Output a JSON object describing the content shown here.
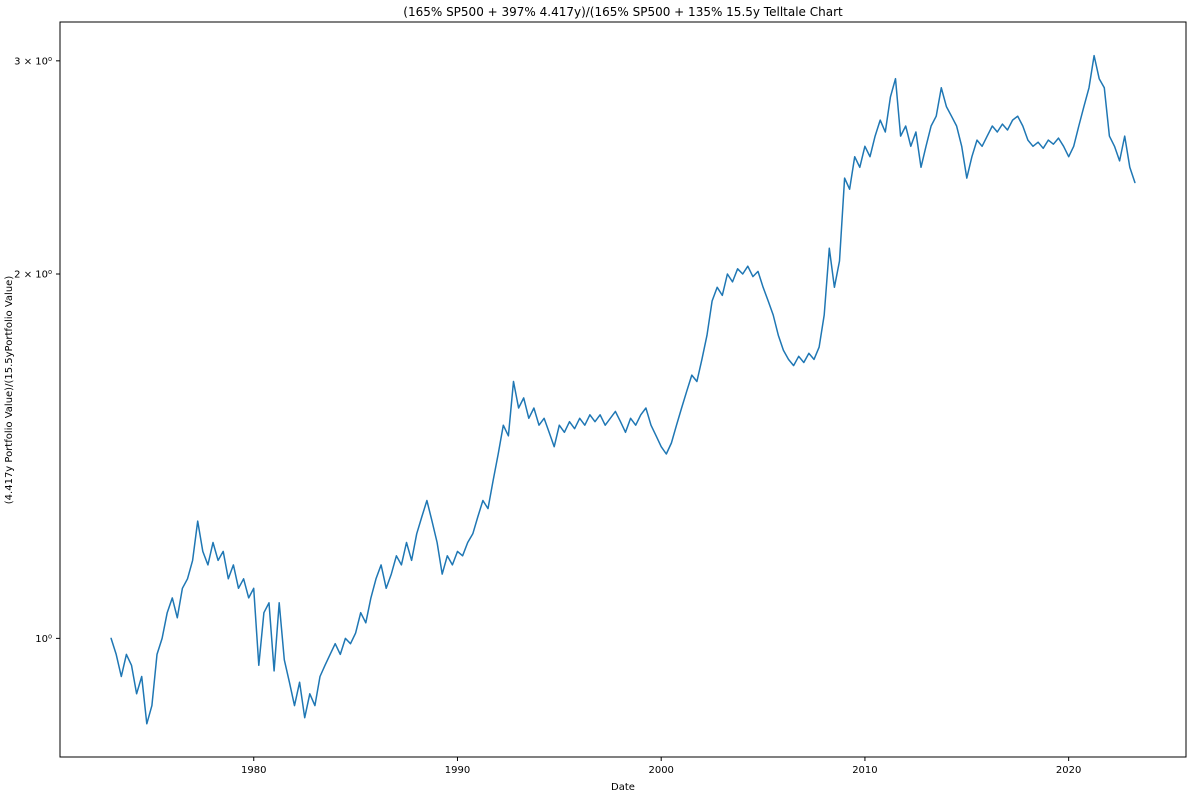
{
  "chart_data": {
    "type": "line",
    "title": "(165% SP500 + 397% 4.417y)/(165% SP500 + 135% 15.5y Telltale Chart",
    "xlabel": "Date",
    "ylabel": "(4.417y Portfolio Value)/(15.5yPortfolio Value)",
    "yscale": "log",
    "xlim": [
      1970.49,
      2025.76
    ],
    "ylim": [
      0.798,
      3.23
    ],
    "xtick_values": [
      1980,
      1990,
      2000,
      2010,
      2020
    ],
    "xtick_labels": [
      "1980",
      "1990",
      "2000",
      "2010",
      "2020"
    ],
    "ytick_values": [
      1,
      2,
      3
    ],
    "ytick_labels": [
      "10⁰",
      "2 × 10⁰",
      "3 × 10⁰"
    ],
    "line_color": "#1f77b4",
    "axis_color": "#000000",
    "background_color": "#ffffff",
    "legend": "none",
    "grid": false,
    "points": [
      [
        1973.0,
        1.0
      ],
      [
        1973.25,
        0.97
      ],
      [
        1973.5,
        0.93
      ],
      [
        1973.75,
        0.97
      ],
      [
        1974.0,
        0.95
      ],
      [
        1974.25,
        0.9
      ],
      [
        1974.5,
        0.93
      ],
      [
        1974.75,
        0.85
      ],
      [
        1975.0,
        0.88
      ],
      [
        1975.25,
        0.97
      ],
      [
        1975.5,
        1.0
      ],
      [
        1975.75,
        1.05
      ],
      [
        1976.0,
        1.08
      ],
      [
        1976.25,
        1.04
      ],
      [
        1976.5,
        1.1
      ],
      [
        1976.75,
        1.12
      ],
      [
        1977.0,
        1.16
      ],
      [
        1977.25,
        1.25
      ],
      [
        1977.5,
        1.18
      ],
      [
        1977.75,
        1.15
      ],
      [
        1978.0,
        1.2
      ],
      [
        1978.25,
        1.16
      ],
      [
        1978.5,
        1.18
      ],
      [
        1978.75,
        1.12
      ],
      [
        1979.0,
        1.15
      ],
      [
        1979.25,
        1.1
      ],
      [
        1979.5,
        1.12
      ],
      [
        1979.75,
        1.08
      ],
      [
        1980.0,
        1.1
      ],
      [
        1980.25,
        0.95
      ],
      [
        1980.5,
        1.05
      ],
      [
        1980.75,
        1.07
      ],
      [
        1981.0,
        0.94
      ],
      [
        1981.25,
        1.07
      ],
      [
        1981.5,
        0.96
      ],
      [
        1981.75,
        0.92
      ],
      [
        1982.0,
        0.88
      ],
      [
        1982.25,
        0.92
      ],
      [
        1982.5,
        0.86
      ],
      [
        1982.75,
        0.9
      ],
      [
        1983.0,
        0.88
      ],
      [
        1983.25,
        0.93
      ],
      [
        1983.5,
        0.95
      ],
      [
        1983.75,
        0.97
      ],
      [
        1984.0,
        0.99
      ],
      [
        1984.25,
        0.97
      ],
      [
        1984.5,
        1.0
      ],
      [
        1984.75,
        0.99
      ],
      [
        1985.0,
        1.01
      ],
      [
        1985.25,
        1.05
      ],
      [
        1985.5,
        1.03
      ],
      [
        1985.75,
        1.08
      ],
      [
        1986.0,
        1.12
      ],
      [
        1986.25,
        1.15
      ],
      [
        1986.5,
        1.1
      ],
      [
        1986.75,
        1.13
      ],
      [
        1987.0,
        1.17
      ],
      [
        1987.25,
        1.15
      ],
      [
        1987.5,
        1.2
      ],
      [
        1987.75,
        1.16
      ],
      [
        1988.0,
        1.22
      ],
      [
        1988.25,
        1.26
      ],
      [
        1988.5,
        1.3
      ],
      [
        1988.75,
        1.25
      ],
      [
        1989.0,
        1.2
      ],
      [
        1989.25,
        1.13
      ],
      [
        1989.5,
        1.17
      ],
      [
        1989.75,
        1.15
      ],
      [
        1990.0,
        1.18
      ],
      [
        1990.25,
        1.17
      ],
      [
        1990.5,
        1.2
      ],
      [
        1990.75,
        1.22
      ],
      [
        1991.0,
        1.26
      ],
      [
        1991.25,
        1.3
      ],
      [
        1991.5,
        1.28
      ],
      [
        1991.75,
        1.35
      ],
      [
        1992.0,
        1.42
      ],
      [
        1992.25,
        1.5
      ],
      [
        1992.5,
        1.47
      ],
      [
        1992.75,
        1.63
      ],
      [
        1993.0,
        1.55
      ],
      [
        1993.25,
        1.58
      ],
      [
        1993.5,
        1.52
      ],
      [
        1993.75,
        1.55
      ],
      [
        1994.0,
        1.5
      ],
      [
        1994.25,
        1.52
      ],
      [
        1994.5,
        1.48
      ],
      [
        1994.75,
        1.44
      ],
      [
        1995.0,
        1.5
      ],
      [
        1995.25,
        1.48
      ],
      [
        1995.5,
        1.51
      ],
      [
        1995.75,
        1.49
      ],
      [
        1996.0,
        1.52
      ],
      [
        1996.25,
        1.5
      ],
      [
        1996.5,
        1.53
      ],
      [
        1996.75,
        1.51
      ],
      [
        1997.0,
        1.53
      ],
      [
        1997.25,
        1.5
      ],
      [
        1997.5,
        1.52
      ],
      [
        1997.75,
        1.54
      ],
      [
        1998.0,
        1.51
      ],
      [
        1998.25,
        1.48
      ],
      [
        1998.5,
        1.52
      ],
      [
        1998.75,
        1.5
      ],
      [
        1999.0,
        1.53
      ],
      [
        1999.25,
        1.55
      ],
      [
        1999.5,
        1.5
      ],
      [
        1999.75,
        1.47
      ],
      [
        2000.0,
        1.44
      ],
      [
        2000.25,
        1.42
      ],
      [
        2000.5,
        1.45
      ],
      [
        2000.75,
        1.5
      ],
      [
        2001.0,
        1.55
      ],
      [
        2001.25,
        1.6
      ],
      [
        2001.5,
        1.65
      ],
      [
        2001.75,
        1.63
      ],
      [
        2002.0,
        1.7
      ],
      [
        2002.25,
        1.78
      ],
      [
        2002.5,
        1.9
      ],
      [
        2002.75,
        1.95
      ],
      [
        2003.0,
        1.92
      ],
      [
        2003.25,
        2.0
      ],
      [
        2003.5,
        1.97
      ],
      [
        2003.75,
        2.02
      ],
      [
        2004.0,
        2.0
      ],
      [
        2004.25,
        2.03
      ],
      [
        2004.5,
        1.99
      ],
      [
        2004.75,
        2.01
      ],
      [
        2005.0,
        1.95
      ],
      [
        2005.25,
        1.9
      ],
      [
        2005.5,
        1.85
      ],
      [
        2005.75,
        1.78
      ],
      [
        2006.0,
        1.73
      ],
      [
        2006.25,
        1.7
      ],
      [
        2006.5,
        1.68
      ],
      [
        2006.75,
        1.71
      ],
      [
        2007.0,
        1.69
      ],
      [
        2007.25,
        1.72
      ],
      [
        2007.5,
        1.7
      ],
      [
        2007.75,
        1.74
      ],
      [
        2008.0,
        1.85
      ],
      [
        2008.25,
        2.1
      ],
      [
        2008.5,
        1.95
      ],
      [
        2008.75,
        2.05
      ],
      [
        2009.0,
        2.4
      ],
      [
        2009.25,
        2.35
      ],
      [
        2009.5,
        2.5
      ],
      [
        2009.75,
        2.45
      ],
      [
        2010.0,
        2.55
      ],
      [
        2010.25,
        2.5
      ],
      [
        2010.5,
        2.6
      ],
      [
        2010.75,
        2.68
      ],
      [
        2011.0,
        2.62
      ],
      [
        2011.25,
        2.8
      ],
      [
        2011.5,
        2.9
      ],
      [
        2011.75,
        2.6
      ],
      [
        2012.0,
        2.65
      ],
      [
        2012.25,
        2.55
      ],
      [
        2012.5,
        2.62
      ],
      [
        2012.75,
        2.45
      ],
      [
        2013.0,
        2.55
      ],
      [
        2013.25,
        2.65
      ],
      [
        2013.5,
        2.7
      ],
      [
        2013.75,
        2.85
      ],
      [
        2014.0,
        2.75
      ],
      [
        2014.25,
        2.7
      ],
      [
        2014.5,
        2.65
      ],
      [
        2014.75,
        2.55
      ],
      [
        2015.0,
        2.4
      ],
      [
        2015.25,
        2.5
      ],
      [
        2015.5,
        2.58
      ],
      [
        2015.75,
        2.55
      ],
      [
        2016.0,
        2.6
      ],
      [
        2016.25,
        2.65
      ],
      [
        2016.5,
        2.62
      ],
      [
        2016.75,
        2.66
      ],
      [
        2017.0,
        2.63
      ],
      [
        2017.25,
        2.68
      ],
      [
        2017.5,
        2.7
      ],
      [
        2017.75,
        2.65
      ],
      [
        2018.0,
        2.58
      ],
      [
        2018.25,
        2.55
      ],
      [
        2018.5,
        2.57
      ],
      [
        2018.75,
        2.54
      ],
      [
        2019.0,
        2.58
      ],
      [
        2019.25,
        2.56
      ],
      [
        2019.5,
        2.59
      ],
      [
        2019.75,
        2.55
      ],
      [
        2020.0,
        2.5
      ],
      [
        2020.25,
        2.55
      ],
      [
        2020.5,
        2.65
      ],
      [
        2020.75,
        2.75
      ],
      [
        2021.0,
        2.85
      ],
      [
        2021.25,
        3.03
      ],
      [
        2021.5,
        2.9
      ],
      [
        2021.75,
        2.85
      ],
      [
        2022.0,
        2.6
      ],
      [
        2022.25,
        2.55
      ],
      [
        2022.5,
        2.48
      ],
      [
        2022.75,
        2.6
      ],
      [
        2023.0,
        2.45
      ],
      [
        2023.25,
        2.38
      ]
    ]
  }
}
